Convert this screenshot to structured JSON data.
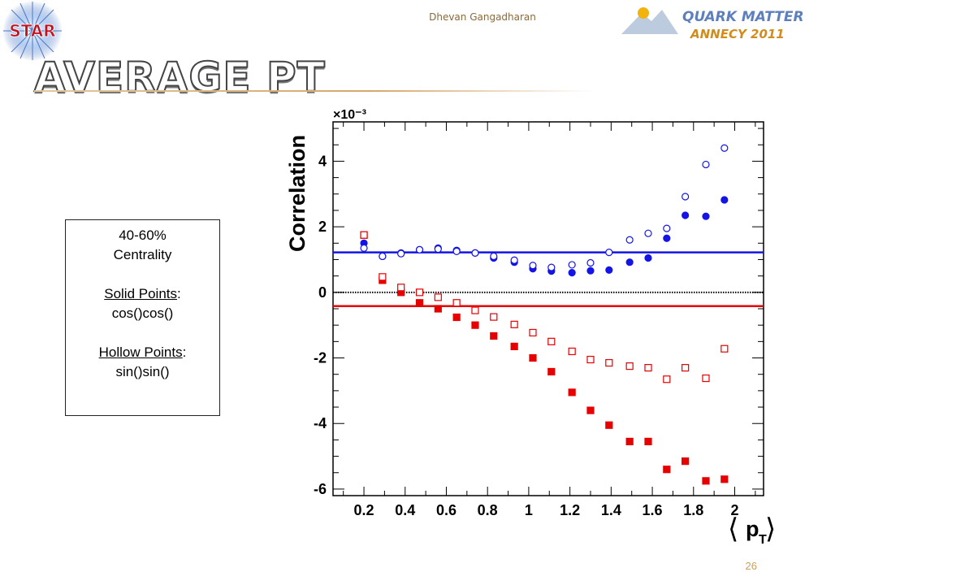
{
  "header": {
    "author": "Dhevan Gangadharan",
    "star_logo_text": "STAR",
    "conference_logo_line1": "QUARK MATTER",
    "conference_logo_line2": "ANNECY 2011"
  },
  "slide": {
    "title": "AVERAGE PT",
    "page_number": "26"
  },
  "info_box": {
    "line1": "40-60%",
    "line2": "Centrality",
    "solid_label": "Solid Points",
    "solid_colon": ":",
    "solid_value": "cos()cos()",
    "hollow_label": "Hollow Points",
    "hollow_colon": ":",
    "hollow_value": "sin()sin()"
  },
  "colors": {
    "blue": "#1414e6",
    "red": "#e60000",
    "accent_rule": "#d7a66a"
  },
  "chart_data": {
    "type": "scatter",
    "title": "",
    "xlabel": "⟨p_T⟩",
    "ylabel": "Correlation",
    "y_multiplier": "×10⁻³",
    "xlim": [
      0.05,
      2.14
    ],
    "ylim": [
      -6.2,
      5.2
    ],
    "x_ticks": [
      "0.2",
      "0.4",
      "0.6",
      "0.8",
      "1",
      "1.2",
      "1.4",
      "1.6",
      "1.8",
      "2"
    ],
    "y_ticks": [
      "-6",
      "-4",
      "-2",
      "0",
      "2",
      "4"
    ],
    "x_tick_values": [
      0.2,
      0.4,
      0.6,
      0.8,
      1.0,
      1.2,
      1.4,
      1.6,
      1.8,
      2.0
    ],
    "y_tick_values": [
      -6,
      -4,
      -2,
      0,
      2,
      4
    ],
    "x": [
      0.2,
      0.29,
      0.38,
      0.47,
      0.56,
      0.65,
      0.74,
      0.83,
      0.93,
      1.02,
      1.11,
      1.21,
      1.3,
      1.39,
      1.49,
      1.58,
      1.67,
      1.76,
      1.86,
      1.95
    ],
    "series": [
      {
        "name": "Solid Points",
        "color": "blue",
        "filled": true,
        "marker": "circle",
        "values": [
          1.5,
          1.1,
          1.2,
          1.3,
          1.35,
          1.28,
          1.2,
          1.05,
          0.92,
          0.72,
          0.65,
          0.6,
          0.66,
          0.68,
          0.92,
          1.05,
          1.65,
          2.35,
          2.32,
          2.82
        ]
      },
      {
        "name": "Hollow Points",
        "color": "blue",
        "filled": false,
        "marker": "circle",
        "values": [
          1.35,
          1.1,
          1.18,
          1.3,
          1.32,
          1.25,
          1.2,
          1.1,
          0.98,
          0.82,
          0.76,
          0.84,
          0.9,
          1.22,
          1.6,
          1.8,
          1.95,
          2.92,
          3.9,
          4.4
        ]
      },
      {
        "name": "Solid Points",
        "color": "red",
        "filled": true,
        "marker": "square",
        "values": [
          1.75,
          0.37,
          0.0,
          -0.32,
          -0.5,
          -0.76,
          -1.0,
          -1.33,
          -1.65,
          -2.0,
          -2.42,
          -3.05,
          -3.6,
          -4.05,
          -4.55,
          -4.55,
          -5.4,
          -5.15,
          -5.75,
          -5.7
        ]
      },
      {
        "name": "Hollow Points",
        "color": "red",
        "filled": false,
        "marker": "square",
        "values": [
          1.75,
          0.47,
          0.15,
          0.0,
          -0.15,
          -0.32,
          -0.55,
          -0.75,
          -0.98,
          -1.23,
          -1.5,
          -1.8,
          -2.05,
          -2.15,
          -2.25,
          -2.3,
          -2.65,
          -2.3,
          -2.62,
          -1.72
        ]
      }
    ],
    "reference_lines": [
      {
        "color": "blue",
        "y": 1.22,
        "style": "solid"
      },
      {
        "color": "red",
        "y": -0.42,
        "style": "solid"
      },
      {
        "color": "black",
        "y": 0.0,
        "style": "dotted"
      }
    ],
    "grid": false,
    "legend": "none"
  }
}
